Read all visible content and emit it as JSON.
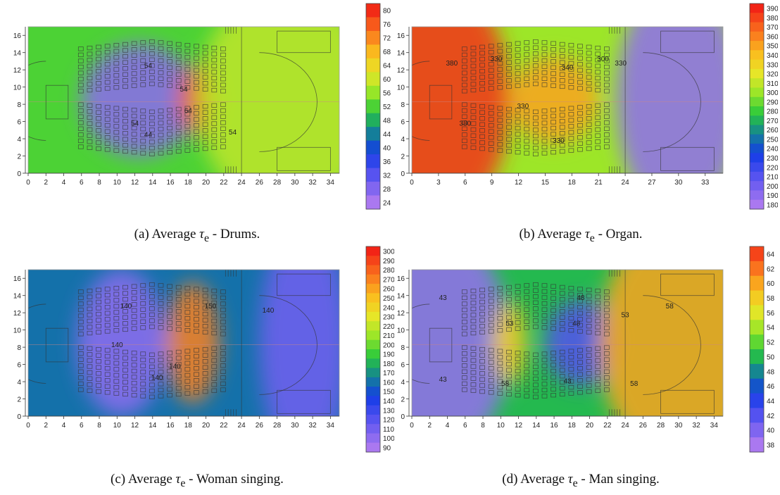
{
  "chart_data": [
    {
      "type": "heatmap",
      "caption_prefix": "(a) Average",
      "caption_symbol": "τ",
      "caption_sub": "e",
      "caption_suffix": "- Drums.",
      "xlim": [
        0,
        35
      ],
      "ylim": [
        0,
        17
      ],
      "xticks": [
        "0",
        "2",
        "4",
        "6",
        "8",
        "10",
        "12",
        "14",
        "16",
        "18",
        "20",
        "22",
        "24",
        "26",
        "28",
        "30",
        "32",
        "34"
      ],
      "yticks": [
        "0",
        "2",
        "4",
        "6",
        "8",
        "10",
        "12",
        "14",
        "16"
      ],
      "scale_ticks": [
        "80",
        "76",
        "72",
        "68",
        "64",
        "60",
        "56",
        "52",
        "48",
        "44",
        "40",
        "36",
        "32",
        "28",
        "24"
      ],
      "scale_range": [
        24,
        82
      ],
      "background": 52,
      "blobs": [
        {
          "x": 12.5,
          "y": 8.5,
          "rx": 6.5,
          "ry": 6.5,
          "v": 27
        },
        {
          "x": 19,
          "y": 8.5,
          "rx": 2.2,
          "ry": 4.2,
          "v": 76
        },
        {
          "x": 29,
          "y": 8.5,
          "rx": 10,
          "ry": 13,
          "v": 59
        }
      ],
      "contour_labels": [
        {
          "x": 13.5,
          "y": 12.2,
          "t": "54"
        },
        {
          "x": 17.5,
          "y": 9.5,
          "t": "54"
        },
        {
          "x": 18,
          "y": 7,
          "t": "64"
        },
        {
          "x": 12,
          "y": 5.5,
          "t": "54"
        },
        {
          "x": 13.5,
          "y": 4.2,
          "t": "44"
        },
        {
          "x": 23,
          "y": 4.5,
          "t": "54"
        }
      ]
    },
    {
      "type": "heatmap",
      "caption_prefix": "(b) Average",
      "caption_symbol": "τ",
      "caption_sub": "e",
      "caption_suffix": "- Organ.",
      "xlim": [
        0,
        35
      ],
      "ylim": [
        0,
        17
      ],
      "xticks": [
        "0",
        "3",
        "6",
        "9",
        "12",
        "15",
        "18",
        "21",
        "24",
        "27",
        "30",
        "33"
      ],
      "yticks": [
        "0",
        "2",
        "4",
        "6",
        "8",
        "10",
        "12",
        "14",
        "16"
      ],
      "scale_ticks": [
        "390",
        "380",
        "370",
        "360",
        "350",
        "340",
        "330",
        "320",
        "310",
        "300",
        "290",
        "280",
        "270",
        "260",
        "250",
        "240",
        "230",
        "220",
        "210",
        "200",
        "190",
        "180"
      ],
      "scale_range": [
        180,
        395
      ],
      "background": 300,
      "blobs": [
        {
          "x": 3,
          "y": 8.5,
          "rx": 8,
          "ry": 14,
          "v": 385
        },
        {
          "x": 16,
          "y": 8.5,
          "rx": 5,
          "ry": 5,
          "v": 350
        },
        {
          "x": 30,
          "y": 8.5,
          "rx": 7,
          "ry": 14,
          "v": 190
        }
      ],
      "contour_labels": [
        {
          "x": 4.5,
          "y": 12.5,
          "t": "380"
        },
        {
          "x": 9.5,
          "y": 13,
          "t": "330"
        },
        {
          "x": 17.5,
          "y": 12,
          "t": "340"
        },
        {
          "x": 21.5,
          "y": 13,
          "t": "300"
        },
        {
          "x": 23.5,
          "y": 12.5,
          "t": "330"
        },
        {
          "x": 12.5,
          "y": 7.5,
          "t": "330"
        },
        {
          "x": 6,
          "y": 5.5,
          "t": "380"
        },
        {
          "x": 16.5,
          "y": 3.5,
          "t": "330"
        }
      ]
    },
    {
      "type": "heatmap",
      "caption_prefix": "(c) Average",
      "caption_symbol": "τ",
      "caption_sub": "e",
      "caption_suffix": "- Woman singing.",
      "xlim": [
        0,
        35
      ],
      "ylim": [
        0,
        17
      ],
      "xticks": [
        "0",
        "2",
        "4",
        "6",
        "8",
        "10",
        "12",
        "14",
        "16",
        "18",
        "20",
        "22",
        "24",
        "26",
        "28",
        "30",
        "32",
        "34"
      ],
      "yticks": [
        "0",
        "2",
        "4",
        "6",
        "8",
        "10",
        "12",
        "14",
        "16"
      ],
      "scale_ticks": [
        "300",
        "290",
        "280",
        "270",
        "260",
        "250",
        "240",
        "230",
        "220",
        "210",
        "200",
        "190",
        "180",
        "170",
        "160",
        "150",
        "140",
        "130",
        "120",
        "110",
        "100",
        "90"
      ],
      "scale_range": [
        90,
        305
      ],
      "background": 160,
      "blobs": [
        {
          "x": 10.5,
          "y": 8.5,
          "rx": 5,
          "ry": 8.5,
          "v": 100
        },
        {
          "x": 18.5,
          "y": 8.5,
          "rx": 3,
          "ry": 7,
          "v": 270
        },
        {
          "x": 31,
          "y": 8.5,
          "rx": 5,
          "ry": 14,
          "v": 110
        }
      ],
      "contour_labels": [
        {
          "x": 11,
          "y": 12.5,
          "t": "140"
        },
        {
          "x": 20.5,
          "y": 12.5,
          "t": "150"
        },
        {
          "x": 27,
          "y": 12,
          "t": "140"
        },
        {
          "x": 10,
          "y": 8,
          "t": "140"
        },
        {
          "x": 16.5,
          "y": 5.5,
          "t": "140"
        },
        {
          "x": 14.5,
          "y": 4.2,
          "t": "140"
        }
      ]
    },
    {
      "type": "heatmap",
      "caption_prefix": "(d) Average",
      "caption_symbol": "τ",
      "caption_sub": "e",
      "caption_suffix": "- Man singing.",
      "xlim": [
        0,
        35
      ],
      "ylim": [
        0,
        17
      ],
      "xticks": [
        "0",
        "2",
        "4",
        "6",
        "8",
        "10",
        "12",
        "14",
        "16",
        "18",
        "20",
        "22",
        "24",
        "26",
        "28",
        "30",
        "32",
        "34"
      ],
      "yticks": [
        "0",
        "2",
        "4",
        "6",
        "8",
        "10",
        "12",
        "14",
        "16"
      ],
      "scale_ticks": [
        "64",
        "62",
        "60",
        "58",
        "56",
        "54",
        "52",
        "50",
        "48",
        "46",
        "44",
        "42",
        "40",
        "38"
      ],
      "scale_range": [
        38,
        66
      ],
      "background": 50,
      "blobs": [
        {
          "x": 3,
          "y": 8.5,
          "rx": 8,
          "ry": 13,
          "v": 39
        },
        {
          "x": 11,
          "y": 8.5,
          "rx": 2,
          "ry": 5,
          "v": 58
        },
        {
          "x": 19,
          "y": 8.5,
          "rx": 4,
          "ry": 5,
          "v": 42
        },
        {
          "x": 30,
          "y": 8.5,
          "rx": 9,
          "ry": 14,
          "v": 60
        }
      ],
      "contour_labels": [
        {
          "x": 3.5,
          "y": 13.5,
          "t": "43"
        },
        {
          "x": 11,
          "y": 10.5,
          "t": "53"
        },
        {
          "x": 19,
          "y": 13.5,
          "t": "48"
        },
        {
          "x": 18.5,
          "y": 10.5,
          "t": "48"
        },
        {
          "x": 24,
          "y": 11.5,
          "t": "53"
        },
        {
          "x": 29,
          "y": 12.5,
          "t": "58"
        },
        {
          "x": 3.5,
          "y": 4,
          "t": "43"
        },
        {
          "x": 10.5,
          "y": 3.5,
          "t": "58"
        },
        {
          "x": 17.5,
          "y": 3.8,
          "t": "43"
        },
        {
          "x": 25,
          "y": 3.5,
          "t": "58"
        }
      ]
    }
  ]
}
